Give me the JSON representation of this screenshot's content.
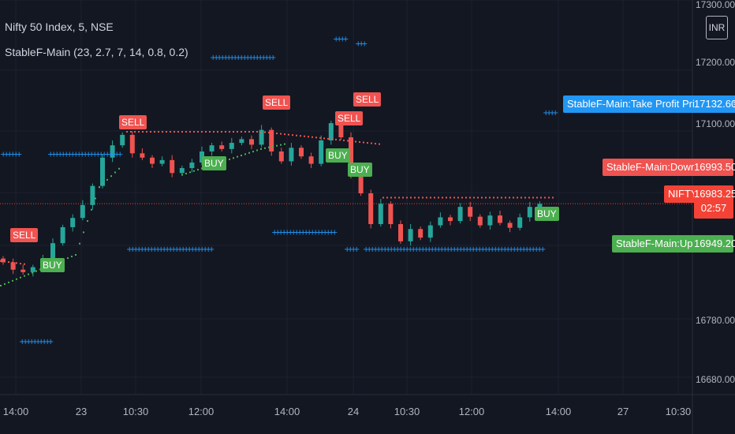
{
  "legend": {
    "title": "Nifty 50 Index, 5, NSE",
    "indicator": "StableF-Main (23, 2.7, 7, 14, 0.8, 0.2)"
  },
  "currency_badge": "INR",
  "colors": {
    "background": "#131722",
    "up_candle": "#26a69a",
    "down_candle": "#ef5350",
    "up_trend": "#4caf50",
    "down_trend": "#f05350",
    "take_profit": "#2196f3",
    "price_line": "#f44336"
  },
  "price_tags": {
    "take_profit": {
      "label": "StableF-Main:Take Profit Price Trigger",
      "value": "17132.60"
    },
    "down_trend": {
      "label": "StableF-Main:Down Trend",
      "value": "16993.50"
    },
    "last": {
      "label": "NIFTY",
      "value": "16983.25",
      "countdown": "02:57"
    },
    "up_trend": {
      "label": "StableF-Main:Up Trend",
      "value": "16949.20"
    }
  },
  "chart_data": {
    "type": "candlestick",
    "title": "Nifty 50 Index, 5, NSE",
    "xlabel": "",
    "ylabel": "",
    "ylim": [
      16660,
      17320
    ],
    "y_ticks": [
      "17300.00",
      "17200.00",
      "17100.00",
      "16780.00",
      "16680.00"
    ],
    "x_ticks": [
      "14:00",
      "23",
      "10:30",
      "12:00",
      "14:00",
      "24",
      "10:30",
      "12:00",
      "14:00",
      "27",
      "10:30"
    ],
    "last_price": 16983.25,
    "candles_close_approx": [
      16888,
      16876,
      16872,
      16880,
      16894,
      16919,
      16945,
      16960,
      16981,
      17012,
      17058,
      17078,
      17095,
      17065,
      17058,
      17048,
      17054,
      17033,
      17041,
      17050,
      17068,
      17078,
      17072,
      17082,
      17088,
      17079,
      17103,
      17068,
      17052,
      17074,
      17060,
      17048,
      17086,
      17114,
      17091,
      17031,
      17000,
      16950,
      16983,
      16950,
      16922,
      16942,
      16928,
      16948,
      16961,
      16955,
      16978,
      16962,
      16948,
      16964,
      16952,
      16944,
      16961,
      16978,
      16983
    ],
    "signals": [
      {
        "label": "SELL",
        "price": 16888
      },
      {
        "label": "BUY",
        "price": 16855
      },
      {
        "label": "SELL",
        "price": 17095
      },
      {
        "label": "BUY",
        "price": 17026
      },
      {
        "label": "SELL",
        "price": 17128
      },
      {
        "label": "SELL",
        "price": 17097
      },
      {
        "label": "SELL",
        "price": 17125
      },
      {
        "label": "BUY",
        "price": 17034
      },
      {
        "label": "BUY",
        "price": 17010
      },
      {
        "label": "BUY",
        "price": 16952
      }
    ],
    "series": [
      {
        "name": "StableF-Main:Up Trend",
        "last": 16949.2
      },
      {
        "name": "StableF-Main:Down Trend",
        "last": 16993.5
      },
      {
        "name": "StableF-Main:Take Profit Price Trigger",
        "last": 17132.6
      }
    ],
    "take_profit_levels": [
      17065,
      17065,
      17222,
      16938,
      16910,
      16910,
      17252,
      17244,
      16910,
      17132
    ]
  }
}
